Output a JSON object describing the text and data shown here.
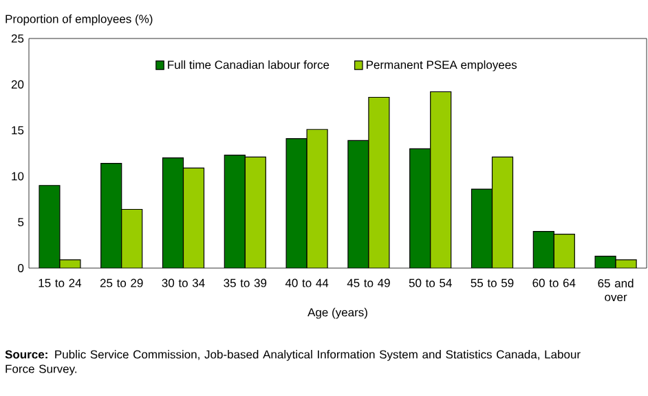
{
  "chart_data": {
    "type": "bar",
    "ylabel": "Proportion of employees (%)",
    "xlabel": "Age (years)",
    "categories": [
      "15 to 24",
      "25 to 29",
      "30 to 34",
      "35 to 39",
      "40 to 44",
      "45 to 49",
      "50 to 54",
      "55 to 59",
      "60 to 64",
      "65 and over"
    ],
    "series": [
      {
        "name": "Full time Canadian labour force",
        "color": "#007a00",
        "values": [
          9.0,
          11.4,
          12.0,
          12.3,
          14.1,
          13.9,
          13.0,
          8.6,
          4.0,
          1.3
        ]
      },
      {
        "name": "Permanent PSEA employees",
        "color": "#99cc00",
        "values": [
          0.9,
          6.4,
          10.9,
          12.1,
          15.1,
          18.6,
          19.2,
          12.1,
          3.7,
          0.9
        ]
      }
    ],
    "ylim": [
      0,
      25
    ],
    "yticks": [
      0,
      5,
      10,
      15,
      20,
      25
    ],
    "legend": "top",
    "annotations": [
      "**Source:** Public Service Commission, Job-based Analytical Information System and Statistics Canada, Labour Force Survey."
    ]
  }
}
